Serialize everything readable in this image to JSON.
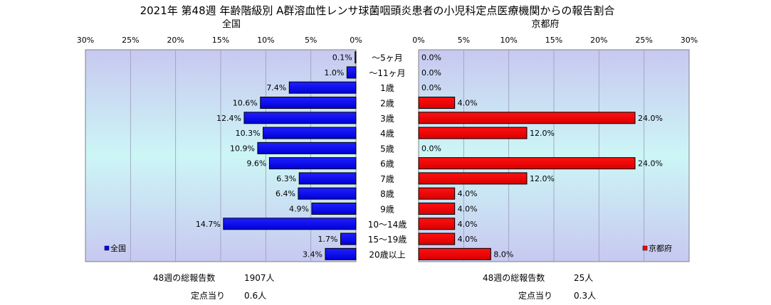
{
  "title": "2021年 第48週 年齢階級別 A群溶血性レンサ球菌咽頭炎患者の小児科定点医療機関からの報告割合",
  "chart_data": {
    "type": "bar",
    "orientation": "horizontal",
    "categories": [
      "〜5ヶ月",
      "〜11ヶ月",
      "1歳",
      "2歳",
      "3歳",
      "4歳",
      "5歳",
      "6歳",
      "7歳",
      "8歳",
      "9歳",
      "10〜14歳",
      "15〜19歳",
      "20歳以上"
    ],
    "series": [
      {
        "name": "全国",
        "values": [
          0.1,
          1.0,
          7.4,
          10.6,
          12.4,
          10.3,
          10.9,
          9.6,
          6.3,
          6.4,
          4.9,
          14.7,
          1.7,
          3.4
        ],
        "labels": [
          "0.1%",
          "1.0%",
          "7.4%",
          "10.6%",
          "12.4%",
          "10.3%",
          "10.9%",
          "9.6%",
          "6.3%",
          "6.4%",
          "4.9%",
          "14.7%",
          "1.7%",
          "3.4%"
        ],
        "color": "#0000ff"
      },
      {
        "name": "京都府",
        "values": [
          0.0,
          0.0,
          0.0,
          4.0,
          24.0,
          12.0,
          0.0,
          24.0,
          12.0,
          4.0,
          4.0,
          4.0,
          4.0,
          8.0
        ],
        "labels": [
          "0.0%",
          "0.0%",
          "0.0%",
          "4.0%",
          "24.0%",
          "12.0%",
          "0.0%",
          "24.0%",
          "12.0%",
          "4.0%",
          "4.0%",
          "4.0%",
          "4.0%",
          "8.0%"
        ],
        "color": "#ff0000"
      }
    ],
    "panel_titles": [
      "全国",
      "京都府"
    ],
    "xlim": [
      0,
      30
    ],
    "ticks": [
      "30%",
      "25%",
      "20%",
      "15%",
      "10%",
      "5%",
      "0%"
    ],
    "ticks_right": [
      "0%",
      "5%",
      "10%",
      "15%",
      "20%",
      "25%",
      "30%"
    ],
    "grid": true,
    "legend": [
      {
        "label": "全国",
        "position": "bottom-left"
      },
      {
        "label": "京都府",
        "position": "bottom-right"
      }
    ]
  },
  "footer": {
    "left": {
      "total_label": "48週の総報告数",
      "total_value": "1907人",
      "per_label": "定点当り",
      "per_value": "0.6人"
    },
    "right": {
      "total_label": "48週の総報告数",
      "total_value": "25人",
      "per_label": "定点当り",
      "per_value": "0.3人"
    }
  }
}
